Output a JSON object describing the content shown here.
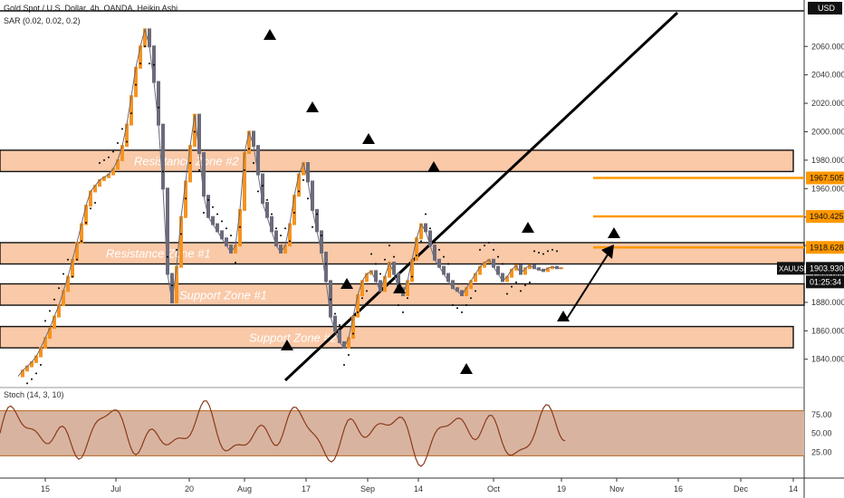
{
  "header": {
    "symbol_line": "Gold Spot / U.S. Dollar, 4h, OANDA, Heikin Ashi",
    "sar_line": "SAR (0.02, 0.02, 0.2)",
    "currency": "USD"
  },
  "colors": {
    "bull": "#f7931e",
    "bear": "#6b6b7b",
    "zone_fill": "#f9c9a8",
    "level_line": "#ff9800",
    "stoch_fill": "#d8b4a0",
    "stoch_line": "#8b3a1a"
  },
  "chart_data": [
    {
      "type": "line",
      "title": "Gold Spot / U.S. Dollar, 4h, OANDA, Heikin Ashi",
      "subtitle": "SAR (0.02, 0.02, 0.2)",
      "ylim": [
        1822,
        2085
      ],
      "yticks": [
        1840,
        1860,
        1880,
        1900,
        1920,
        1940,
        1960,
        1980,
        2000,
        2020,
        2040,
        2060
      ],
      "ytick_labels": [
        "1840.000",
        "1860.000",
        "1880.000",
        "1900.000",
        "1920.000",
        "1940.000",
        "1960.000",
        "1980.000",
        "2000.000",
        "2020.000",
        "2040.000",
        "2060.000"
      ],
      "xticks": [
        "15",
        "Jul",
        "20",
        "Aug",
        "17",
        "Sep",
        "14",
        "Oct",
        "19",
        "Nov",
        "16",
        "Dec",
        "14"
      ],
      "last_price": {
        "symbol": "XAUUSD",
        "value": "1903.930",
        "countdown": "01:25:34"
      },
      "price_levels": [
        {
          "label": "1967.505",
          "value": 1967.505
        },
        {
          "label": "1940.425",
          "value": 1940.425
        },
        {
          "label": "1918.628",
          "value": 1918.628
        }
      ],
      "zones": [
        {
          "label": "Resistance Zone #2",
          "low": 1972,
          "high": 1987
        },
        {
          "label": "Resistance Zone #1",
          "low": 1907,
          "high": 1922
        },
        {
          "label": "Support Zone #1",
          "low": 1878,
          "high": 1893
        },
        {
          "label": "Support Zone #2",
          "low": 1848,
          "high": 1863
        }
      ],
      "price_series_x": [
        20,
        25,
        30,
        35,
        40,
        45,
        50,
        55,
        60,
        65,
        70,
        75,
        80,
        85,
        90,
        95,
        100,
        105,
        110,
        115,
        120,
        125,
        130,
        135,
        140,
        145,
        150,
        155,
        160,
        165,
        170,
        175,
        180,
        185,
        190,
        195,
        200,
        205,
        210,
        215,
        220,
        225,
        230,
        235,
        240,
        245,
        250,
        255,
        260,
        265,
        270,
        275,
        280,
        285,
        290,
        295,
        300,
        305,
        310,
        315,
        320,
        325,
        330,
        335,
        340,
        345,
        350,
        355,
        360,
        365,
        370,
        375,
        380,
        385,
        390,
        395,
        400,
        405,
        410,
        415,
        420,
        425,
        430,
        435,
        440,
        445,
        450,
        455,
        460,
        465,
        470,
        475,
        480,
        485,
        490,
        495,
        500,
        505,
        510,
        515,
        520,
        525,
        530,
        535,
        540,
        545,
        550,
        555,
        560,
        565,
        570,
        575,
        580,
        585,
        590,
        595,
        600,
        605,
        610,
        615,
        620
      ],
      "price_series_y": [
        1828,
        1832,
        1835,
        1838,
        1842,
        1848,
        1855,
        1862,
        1870,
        1878,
        1888,
        1898,
        1910,
        1922,
        1935,
        1948,
        1958,
        1962,
        1966,
        1968,
        1970,
        1974,
        1980,
        1990,
        2005,
        2025,
        2045,
        2060,
        2072,
        2060,
        2035,
        2005,
        1960,
        1900,
        1880,
        1905,
        1940,
        1965,
        1990,
        2012,
        1985,
        1955,
        1940,
        1935,
        1930,
        1925,
        1920,
        1915,
        1920,
        1945,
        1985,
        2000,
        1990,
        1970,
        1950,
        1940,
        1930,
        1920,
        1915,
        1920,
        1935,
        1955,
        1970,
        1978,
        1965,
        1945,
        1930,
        1915,
        1895,
        1870,
        1860,
        1852,
        1848,
        1855,
        1870,
        1885,
        1895,
        1900,
        1902,
        1895,
        1888,
        1898,
        1908,
        1900,
        1890,
        1885,
        1895,
        1910,
        1925,
        1935,
        1930,
        1920,
        1910,
        1905,
        1900,
        1895,
        1890,
        1888,
        1885,
        1890,
        1895,
        1900,
        1905,
        1908,
        1910,
        1905,
        1900,
        1895,
        1898,
        1903,
        1906,
        1900,
        1904,
        1906,
        1904,
        1903,
        1902,
        1904,
        1905,
        1904,
        1904
      ],
      "stoch_yticks": [
        25,
        50,
        75
      ],
      "stoch_label": "Stoch (14, 3, 10)"
    }
  ],
  "stoch_ytick_labels": [
    "25.00",
    "50.00",
    "75.00"
  ]
}
